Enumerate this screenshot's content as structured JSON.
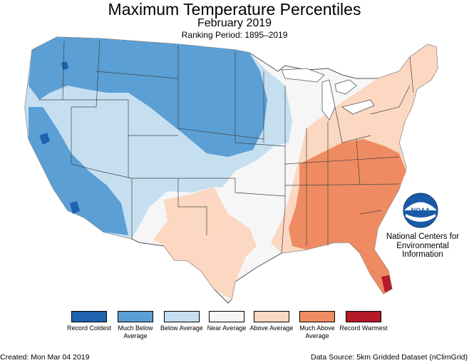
{
  "header": {
    "title": "Maximum Temperature Percentiles",
    "subtitle": "February 2019",
    "ranking_period": "Ranking Period: 1895–2019"
  },
  "legend": [
    {
      "label": "Record Coldest",
      "color": "#1f62b0"
    },
    {
      "label": "Much Below Average",
      "color": "#5b9fd4"
    },
    {
      "label": "Below Average",
      "color": "#c6dff0"
    },
    {
      "label": "Near Average",
      "color": "#f6f6f6"
    },
    {
      "label": "Above Average",
      "color": "#fcd7c1"
    },
    {
      "label": "Much Above Average",
      "color": "#ef8b62"
    },
    {
      "label": "Record Warmest",
      "color": "#b51a28"
    }
  ],
  "logo": {
    "text": "NOAA",
    "org_name": "National Centers for Environmental Information"
  },
  "footer": {
    "created": "Created: Mon Mar 04 2019",
    "source": "Data Source: 5km Gridded Dataset (nClimGrid)"
  }
}
